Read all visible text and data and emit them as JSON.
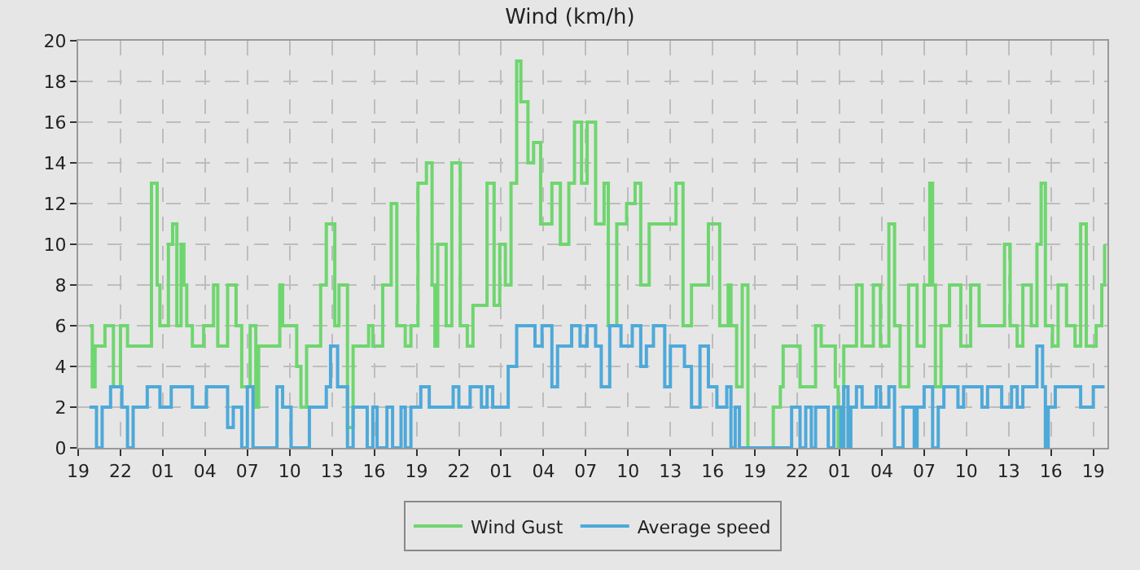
{
  "chart_data": {
    "type": "step",
    "title": "Wind (km/h)",
    "xlim": [
      "--01-01T19:00",
      "--01-04T20:00"
    ],
    "xticks": [
      {
        "value": "--01-01T19:00",
        "label": "19"
      },
      {
        "value": "--01-01T22:00",
        "label": "22"
      },
      {
        "value": "--01-02T01:00",
        "label": "01"
      },
      {
        "value": "--01-02T04:00",
        "label": "04"
      },
      {
        "value": "--01-02T07:00",
        "label": "07"
      },
      {
        "value": "--01-02T10:00",
        "label": "10"
      },
      {
        "value": "--01-02T13:00",
        "label": "13"
      },
      {
        "value": "--01-02T16:00",
        "label": "16"
      },
      {
        "value": "--01-02T19:00",
        "label": "19"
      },
      {
        "value": "--01-02T22:00",
        "label": "22"
      },
      {
        "value": "--01-03T01:00",
        "label": "01"
      },
      {
        "value": "--01-03T04:00",
        "label": "04"
      },
      {
        "value": "--01-03T07:00",
        "label": "07"
      },
      {
        "value": "--01-03T10:00",
        "label": "10"
      },
      {
        "value": "--01-03T13:00",
        "label": "13"
      },
      {
        "value": "--01-03T16:00",
        "label": "16"
      },
      {
        "value": "--01-03T19:00",
        "label": "19"
      },
      {
        "value": "--01-03T22:00",
        "label": "22"
      },
      {
        "value": "--01-04T01:00",
        "label": "01"
      },
      {
        "value": "--01-04T04:00",
        "label": "04"
      },
      {
        "value": "--01-04T07:00",
        "label": "07"
      },
      {
        "value": "--01-04T10:00",
        "label": "10"
      },
      {
        "value": "--01-04T13:00",
        "label": "13"
      },
      {
        "value": "--01-04T16:00",
        "label": "16"
      },
      {
        "value": "--01-04T19:00",
        "label": "19"
      }
    ],
    "ylim": [
      0,
      20
    ],
    "yticks": [
      0,
      2,
      4,
      6,
      8,
      10,
      12,
      14,
      16,
      18,
      20
    ],
    "grid": true,
    "legend": "bottom",
    "marker": "none",
    "line_style": "solid",
    "series": [
      {
        "name": "Wind Gust",
        "color": "#6fd66f",
        "x": [
          "--01-01T19:48",
          "--01-01T20:00",
          "--01-01T20:12",
          "--01-01T20:54",
          "--01-01T21:30",
          "--01-01T22:00",
          "--01-01T22:30",
          "--01-01T23:36",
          "--01-02T00:12",
          "--01-02T00:36",
          "--01-02T00:48",
          "--01-02T01:24",
          "--01-02T01:42",
          "--01-02T02:00",
          "--01-02T02:18",
          "--01-02T02:30",
          "--01-02T02:42",
          "--01-02T03:06",
          "--01-02T03:54",
          "--01-02T04:36",
          "--01-02T04:54",
          "--01-02T05:36",
          "--01-02T06:12",
          "--01-02T06:36",
          "--01-02T07:12",
          "--01-02T07:36",
          "--01-02T07:48",
          "--01-02T09:18",
          "--01-02T09:30",
          "--01-02T10:06",
          "--01-02T10:30",
          "--01-02T10:48",
          "--01-02T11:12",
          "--01-02T12:12",
          "--01-02T12:36",
          "--01-02T13:12",
          "--01-02T13:30",
          "--01-02T14:06",
          "--01-02T14:30",
          "--01-02T15:36",
          "--01-02T15:54",
          "--01-02T16:36",
          "--01-02T17:12",
          "--01-02T17:36",
          "--01-02T18:12",
          "--01-02T18:36",
          "--01-02T19:06",
          "--01-02T19:42",
          "--01-02T20:06",
          "--01-02T20:18",
          "--01-02T20:30",
          "--01-02T21:06",
          "--01-02T21:30",
          "--01-02T22:06",
          "--01-02T22:36",
          "--01-02T23:00",
          "--01-03T00:00",
          "--01-03T00:30",
          "--01-03T00:54",
          "--01-03T01:18",
          "--01-03T01:42",
          "--01-03T02:06",
          "--01-03T02:24",
          "--01-03T02:54",
          "--01-03T03:18",
          "--01-03T03:48",
          "--01-03T04:36",
          "--01-03T05:12",
          "--01-03T05:48",
          "--01-03T06:12",
          "--01-03T06:42",
          "--01-03T07:06",
          "--01-03T07:42",
          "--01-03T08:18",
          "--01-03T08:36",
          "--01-03T09:12",
          "--01-03T09:54",
          "--01-03T10:30",
          "--01-03T10:54",
          "--01-03T11:30",
          "--01-03T12:36",
          "--01-03T13:24",
          "--01-03T13:54",
          "--01-03T14:30",
          "--01-03T15:42",
          "--01-03T16:30",
          "--01-03T17:06",
          "--01-03T17:18",
          "--01-03T17:42",
          "--01-03T18:06",
          "--01-03T18:30",
          "--01-03T20:18",
          "--01-03T20:48",
          "--01-03T21:00",
          "--01-03T22:12",
          "--01-03T23:18",
          "--01-03T23:42",
          "--01-04T00:42",
          "--01-04T00:54",
          "--01-04T01:18",
          "--01-04T02:12",
          "--01-04T02:36",
          "--01-04T03:24",
          "--01-04T03:54",
          "--01-04T04:30",
          "--01-04T04:54",
          "--01-04T05:18",
          "--01-04T05:54",
          "--01-04T06:30",
          "--01-04T07:00",
          "--01-04T07:24",
          "--01-04T07:36",
          "--01-04T07:48",
          "--01-04T08:12",
          "--01-04T08:48",
          "--01-04T09:36",
          "--01-04T10:18",
          "--01-04T10:54",
          "--01-04T12:42",
          "--01-04T13:06",
          "--01-04T13:36",
          "--01-04T14:00",
          "--01-04T14:36",
          "--01-04T15:00",
          "--01-04T15:18",
          "--01-04T15:36",
          "--01-04T16:06",
          "--01-04T16:30",
          "--01-04T17:06",
          "--01-04T17:42",
          "--01-04T18:06",
          "--01-04T18:30",
          "--01-04T19:12",
          "--01-04T19:36",
          "--01-04T19:48"
        ],
        "values": [
          6,
          3,
          5,
          6,
          3,
          6,
          5,
          5,
          13,
          8,
          6,
          10,
          11,
          6,
          10,
          8,
          6,
          5,
          6,
          8,
          5,
          8,
          6,
          3,
          6,
          2,
          5,
          8,
          6,
          6,
          4,
          2,
          5,
          8,
          11,
          6,
          8,
          1,
          5,
          6,
          5,
          8,
          12,
          6,
          5,
          6,
          13,
          14,
          8,
          5,
          10,
          6,
          14,
          6,
          5,
          7,
          13,
          7,
          10,
          8,
          13,
          19,
          17,
          14,
          15,
          11,
          13,
          10,
          13,
          16,
          13,
          16,
          11,
          13,
          6,
          11,
          12,
          13,
          8,
          11,
          11,
          13,
          6,
          8,
          11,
          6,
          8,
          6,
          3,
          8,
          0,
          2,
          3,
          5,
          3,
          6,
          5,
          3,
          0,
          5,
          8,
          5,
          8,
          5,
          11,
          6,
          3,
          8,
          5,
          8,
          13,
          8,
          3,
          6,
          8,
          5,
          8,
          6,
          10,
          6,
          5,
          8,
          6,
          10,
          13,
          6,
          5,
          8,
          6,
          5,
          11,
          5,
          6,
          8,
          10
        ]
      },
      {
        "name": "Average speed",
        "color": "#4ea9d9",
        "x": [
          "--01-01T19:48",
          "--01-01T20:18",
          "--01-01T20:42",
          "--01-01T21:18",
          "--01-01T22:06",
          "--01-01T22:30",
          "--01-01T22:54",
          "--01-01T23:54",
          "--01-02T00:48",
          "--01-02T01:36",
          "--01-02T03:06",
          "--01-02T04:06",
          "--01-02T05:36",
          "--01-02T06:00",
          "--01-02T06:36",
          "--01-02T07:00",
          "--01-02T07:24",
          "--01-02T08:06",
          "--01-02T09:06",
          "--01-02T09:30",
          "--01-02T10:06",
          "--01-02T10:48",
          "--01-02T11:24",
          "--01-02T12:36",
          "--01-02T12:54",
          "--01-02T13:24",
          "--01-02T14:06",
          "--01-02T14:30",
          "--01-02T15:30",
          "--01-02T15:54",
          "--01-02T16:12",
          "--01-02T16:54",
          "--01-02T17:18",
          "--01-02T17:54",
          "--01-02T18:12",
          "--01-02T18:36",
          "--01-02T19:18",
          "--01-02T19:54",
          "--01-02T21:36",
          "--01-02T22:00",
          "--01-02T22:48",
          "--01-02T23:36",
          "--01-03T00:00",
          "--01-03T00:24",
          "--01-03T01:30",
          "--01-03T02:06",
          "--01-03T03:24",
          "--01-03T03:54",
          "--01-03T04:36",
          "--01-03T05:00",
          "--01-03T06:00",
          "--01-03T06:36",
          "--01-03T07:06",
          "--01-03T07:42",
          "--01-03T08:06",
          "--01-03T08:42",
          "--01-03T09:30",
          "--01-03T10:18",
          "--01-03T10:54",
          "--01-03T11:18",
          "--01-03T11:48",
          "--01-03T12:36",
          "--01-03T13:00",
          "--01-03T14:00",
          "--01-03T14:30",
          "--01-03T15:06",
          "--01-03T15:42",
          "--01-03T16:18",
          "--01-03T17:00",
          "--01-03T17:18",
          "--01-03T17:36",
          "--01-03T17:54",
          "--01-03T21:36",
          "--01-03T22:12",
          "--01-03T22:36",
          "--01-03T23:00",
          "--01-03T23:18",
          "--01-04T00:12",
          "--01-04T00:36",
          "--01-04T01:06",
          "--01-04T01:18",
          "--01-04T01:36",
          "--01-04T01:48",
          "--01-04T02:12",
          "--01-04T02:36",
          "--01-04T03:36",
          "--01-04T03:54",
          "--01-04T04:30",
          "--01-04T04:54",
          "--01-04T05:30",
          "--01-04T06:18",
          "--01-04T06:30",
          "--01-04T07:00",
          "--01-04T07:36",
          "--01-04T08:00",
          "--01-04T08:24",
          "--01-04T09:24",
          "--01-04T09:48",
          "--01-04T11:06",
          "--01-04T11:30",
          "--01-04T12:30",
          "--01-04T13:12",
          "--01-04T13:36",
          "--01-04T14:00",
          "--01-04T15:00",
          "--01-04T15:24",
          "--01-04T15:36",
          "--01-04T15:48",
          "--01-04T16:18",
          "--01-04T18:06",
          "--01-04T19:00",
          "--01-04T19:48"
        ],
        "values": [
          2,
          0,
          2,
          3,
          2,
          0,
          2,
          3,
          2,
          3,
          2,
          3,
          1,
          2,
          0,
          3,
          0,
          0,
          3,
          2,
          0,
          0,
          2,
          3,
          5,
          3,
          0,
          2,
          0,
          2,
          0,
          2,
          0,
          2,
          0,
          2,
          3,
          2,
          3,
          2,
          3,
          2,
          3,
          2,
          4,
          6,
          5,
          6,
          3,
          5,
          6,
          5,
          6,
          5,
          3,
          6,
          5,
          6,
          4,
          5,
          6,
          3,
          5,
          4,
          2,
          5,
          3,
          2,
          3,
          0,
          2,
          0,
          2,
          0,
          2,
          0,
          2,
          0,
          2,
          0,
          3,
          0,
          2,
          3,
          2,
          3,
          2,
          3,
          0,
          2,
          0,
          2,
          3,
          0,
          2,
          3,
          2,
          3,
          2,
          3,
          2,
          3,
          2,
          3,
          5,
          3,
          0,
          2,
          3,
          2,
          3,
          3
        ]
      }
    ]
  }
}
